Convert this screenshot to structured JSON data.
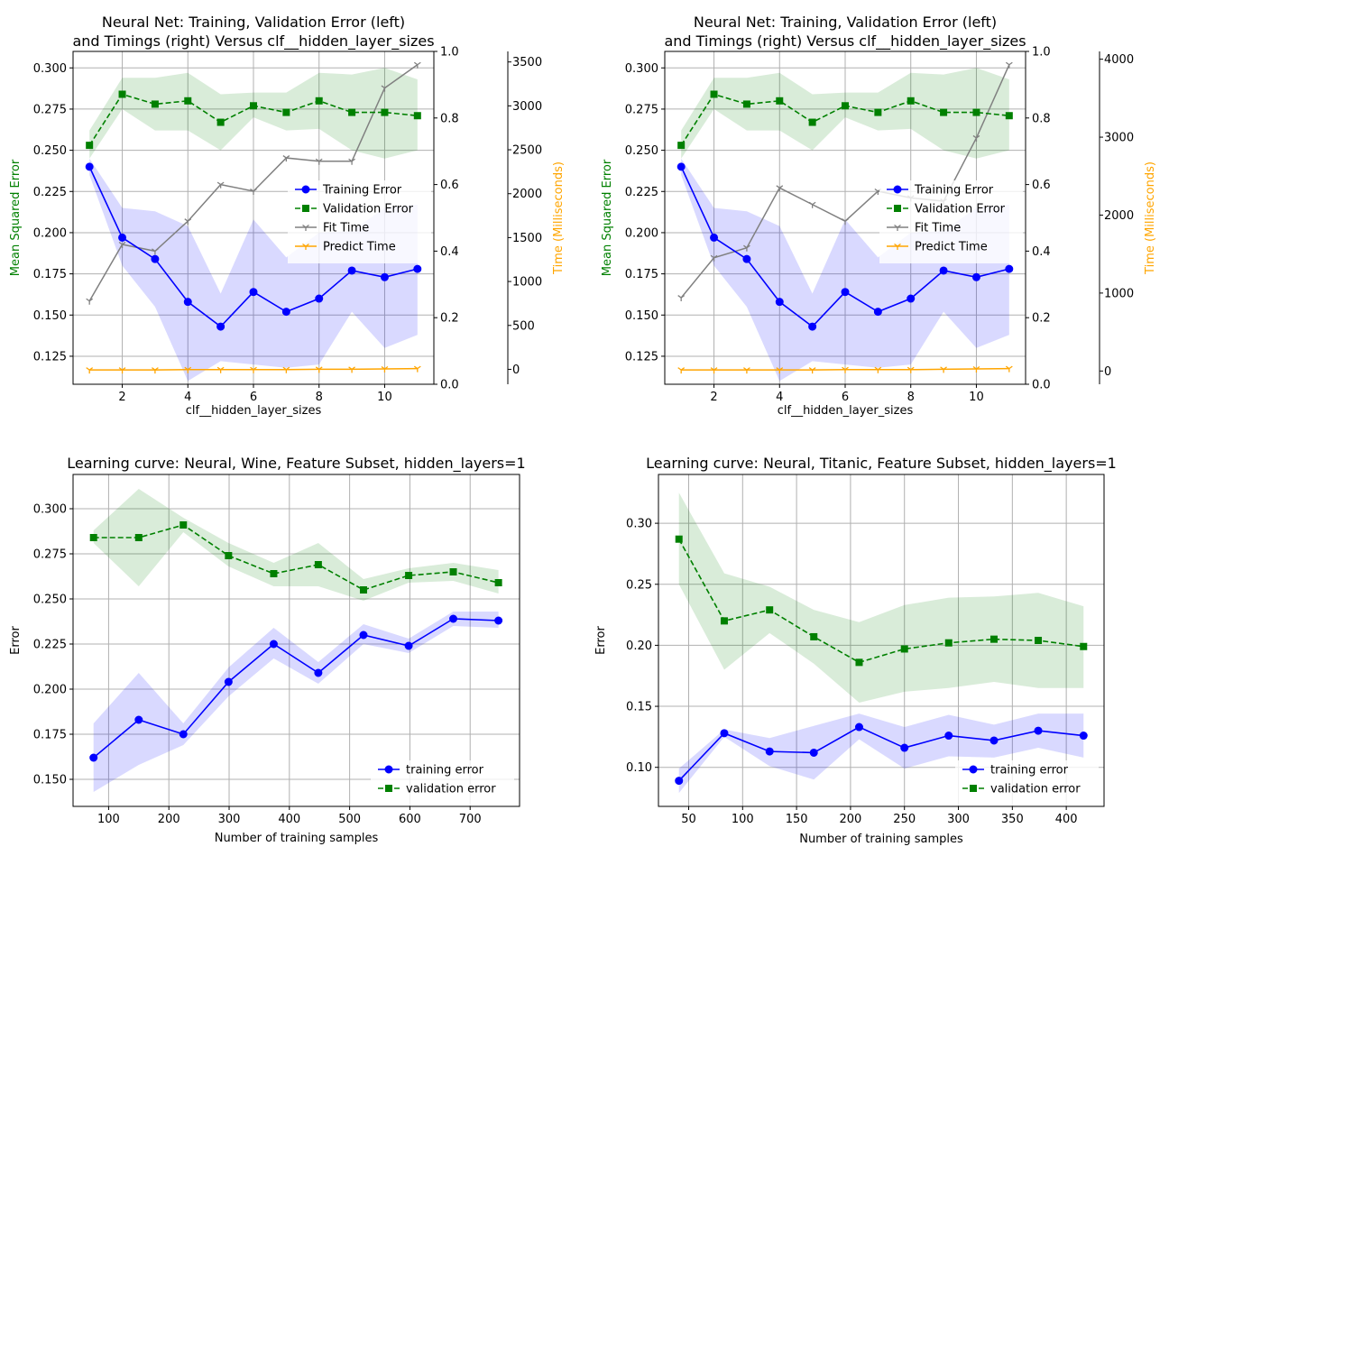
{
  "chart_data": [
    {
      "type": "line",
      "title": [
        "Neural Net: Training, Validation Error (left)",
        "and Timings (right) Versus clf__hidden_layer_sizes"
      ],
      "xlabel": "clf__hidden_layer_sizes",
      "ylabel": "Mean Squared Error",
      "ylabel2": "Time (Milliseconds)",
      "x": [
        1,
        2,
        3,
        4,
        5,
        6,
        7,
        8,
        9,
        10,
        11
      ],
      "xlim": [
        0.5,
        11.5
      ],
      "ylim": [
        0.108,
        0.31
      ],
      "y2lim": [
        0,
        1
      ],
      "y3lim": [
        -170,
        3620
      ],
      "xticks": [
        2,
        4,
        6,
        8,
        10
      ],
      "yticks": [
        0.125,
        0.15,
        0.175,
        0.2,
        0.225,
        0.25,
        0.275,
        0.3
      ],
      "y2ticks": [
        0.0,
        0.2,
        0.4,
        0.6,
        0.8,
        1.0
      ],
      "y3ticks": [
        0,
        500,
        1000,
        1500,
        2000,
        2500,
        3000,
        3500
      ],
      "legend": "center-right",
      "grid": true,
      "error_series": [
        {
          "name": "Training Error",
          "color": "#0000ff",
          "marker": "circle",
          "dash": "solid",
          "values": [
            0.24,
            0.197,
            0.184,
            0.158,
            0.143,
            0.164,
            0.152,
            0.16,
            0.177,
            0.173,
            0.178
          ],
          "band_lower": [
            0.235,
            0.18,
            0.155,
            0.11,
            0.122,
            0.12,
            0.118,
            0.12,
            0.152,
            0.13,
            0.138
          ],
          "band_upper": [
            0.245,
            0.215,
            0.213,
            0.204,
            0.163,
            0.208,
            0.185,
            0.2,
            0.201,
            0.215,
            0.217
          ],
          "band_color": "#0000ff"
        },
        {
          "name": "Validation Error",
          "color": "#008000",
          "marker": "square",
          "dash": "dashed",
          "values": [
            0.253,
            0.284,
            0.278,
            0.28,
            0.267,
            0.277,
            0.273,
            0.28,
            0.273,
            0.273,
            0.271
          ],
          "band_lower": [
            0.245,
            0.275,
            0.262,
            0.262,
            0.25,
            0.27,
            0.262,
            0.263,
            0.25,
            0.245,
            0.25
          ],
          "band_upper": [
            0.262,
            0.294,
            0.294,
            0.297,
            0.284,
            0.285,
            0.285,
            0.297,
            0.296,
            0.3,
            0.293
          ],
          "band_color": "#008000"
        }
      ],
      "time_series": [
        {
          "name": "Fit Time",
          "color": "#808080",
          "marker": "tri",
          "values": [
            0.25,
            0.42,
            0.4,
            0.49,
            0.6,
            0.58,
            0.68,
            0.67,
            0.67,
            0.89,
            0.96
          ]
        },
        {
          "name": "Predict Time",
          "color": "#ffa500",
          "marker": "tri",
          "values": [
            0.043,
            0.043,
            0.043,
            0.044,
            0.044,
            0.044,
            0.044,
            0.045,
            0.045,
            0.046,
            0.047
          ]
        }
      ]
    },
    {
      "type": "line",
      "title": [
        "Neural Net: Training, Validation Error (left)",
        "and Timings (right) Versus clf__hidden_layer_sizes"
      ],
      "xlabel": "clf__hidden_layer_sizes",
      "ylabel": "Mean Squared Error",
      "ylabel2": "Time (Milliseconds)",
      "x": [
        1,
        2,
        3,
        4,
        5,
        6,
        7,
        8,
        9,
        10,
        11
      ],
      "xlim": [
        0.5,
        11.5
      ],
      "ylim": [
        0.108,
        0.31
      ],
      "y2lim": [
        0,
        1
      ],
      "y3lim": [
        -170,
        4100
      ],
      "xticks": [
        2,
        4,
        6,
        8,
        10
      ],
      "yticks": [
        0.125,
        0.15,
        0.175,
        0.2,
        0.225,
        0.25,
        0.275,
        0.3
      ],
      "y2ticks": [
        0.0,
        0.2,
        0.4,
        0.6,
        0.8,
        1.0
      ],
      "y3ticks": [
        0,
        1000,
        2000,
        3000,
        4000
      ],
      "legend": "center-right",
      "grid": true,
      "error_series": [
        {
          "name": "Training Error",
          "color": "#0000ff",
          "marker": "circle",
          "dash": "solid",
          "values": [
            0.24,
            0.197,
            0.184,
            0.158,
            0.143,
            0.164,
            0.152,
            0.16,
            0.177,
            0.173,
            0.178
          ],
          "band_lower": [
            0.235,
            0.18,
            0.155,
            0.11,
            0.122,
            0.12,
            0.118,
            0.12,
            0.152,
            0.13,
            0.138
          ],
          "band_upper": [
            0.245,
            0.215,
            0.213,
            0.204,
            0.163,
            0.208,
            0.185,
            0.2,
            0.201,
            0.215,
            0.217
          ],
          "band_color": "#0000ff"
        },
        {
          "name": "Validation Error",
          "color": "#008000",
          "marker": "square",
          "dash": "dashed",
          "values": [
            0.253,
            0.284,
            0.278,
            0.28,
            0.267,
            0.277,
            0.273,
            0.28,
            0.273,
            0.273,
            0.271
          ],
          "band_lower": [
            0.245,
            0.275,
            0.262,
            0.262,
            0.25,
            0.27,
            0.262,
            0.263,
            0.25,
            0.245,
            0.25
          ],
          "band_upper": [
            0.262,
            0.294,
            0.294,
            0.297,
            0.284,
            0.285,
            0.285,
            0.297,
            0.296,
            0.3,
            0.293
          ],
          "band_color": "#008000"
        }
      ],
      "time_series": [
        {
          "name": "Fit Time",
          "color": "#808080",
          "marker": "tri",
          "values": [
            0.26,
            0.38,
            0.41,
            0.59,
            0.54,
            0.49,
            0.58,
            0.56,
            0.55,
            0.74,
            0.96
          ]
        },
        {
          "name": "Predict Time",
          "color": "#ffa500",
          "marker": "tri",
          "values": [
            0.043,
            0.043,
            0.043,
            0.043,
            0.043,
            0.044,
            0.044,
            0.044,
            0.045,
            0.046,
            0.047
          ]
        }
      ]
    },
    {
      "type": "line",
      "title": [
        "Learning curve: Neural, Wine, Feature Subset, hidden_layers=1"
      ],
      "xlabel": "Number of training samples",
      "ylabel": "Error",
      "x": [
        75,
        150,
        224,
        299,
        374,
        448,
        523,
        598,
        672,
        747
      ],
      "xlim": [
        41,
        782
      ],
      "ylim": [
        0.135,
        0.319
      ],
      "xticks": [
        100,
        200,
        300,
        400,
        500,
        600,
        700
      ],
      "yticks": [
        0.15,
        0.175,
        0.2,
        0.225,
        0.25,
        0.275,
        0.3
      ],
      "legend": "lower-right",
      "grid": true,
      "series": [
        {
          "name": "training error",
          "color": "#0000ff",
          "marker": "circle",
          "dash": "solid",
          "values": [
            0.162,
            0.183,
            0.175,
            0.204,
            0.225,
            0.209,
            0.23,
            0.224,
            0.239,
            0.238
          ],
          "band_lower": [
            0.143,
            0.158,
            0.169,
            0.196,
            0.217,
            0.203,
            0.225,
            0.22,
            0.235,
            0.234
          ],
          "band_upper": [
            0.181,
            0.209,
            0.181,
            0.212,
            0.234,
            0.215,
            0.236,
            0.228,
            0.243,
            0.243
          ]
        },
        {
          "name": "validation error",
          "color": "#008000",
          "marker": "square",
          "dash": "dashed",
          "values": [
            0.284,
            0.284,
            0.291,
            0.274,
            0.264,
            0.269,
            0.255,
            0.263,
            0.265,
            0.259
          ],
          "band_lower": [
            0.281,
            0.257,
            0.287,
            0.268,
            0.257,
            0.257,
            0.249,
            0.259,
            0.26,
            0.253
          ],
          "band_upper": [
            0.288,
            0.311,
            0.295,
            0.281,
            0.27,
            0.281,
            0.261,
            0.267,
            0.27,
            0.266
          ]
        }
      ]
    },
    {
      "type": "line",
      "title": [
        "Learning curve: Neural, Titanic, Feature Subset, hidden_layers=1"
      ],
      "xlabel": "Number of training samples",
      "ylabel": "Error",
      "x": [
        41,
        83,
        125,
        166,
        208,
        250,
        291,
        333,
        374,
        416
      ],
      "xlim": [
        22,
        435
      ],
      "ylim": [
        0.068,
        0.34
      ],
      "xticks": [
        50,
        100,
        150,
        200,
        250,
        300,
        350,
        400
      ],
      "yticks": [
        0.1,
        0.15,
        0.2,
        0.25,
        0.3
      ],
      "legend": "lower-right",
      "grid": true,
      "series": [
        {
          "name": "training error",
          "color": "#0000ff",
          "marker": "circle",
          "dash": "solid",
          "values": [
            0.089,
            0.128,
            0.113,
            0.112,
            0.133,
            0.116,
            0.126,
            0.122,
            0.13,
            0.126
          ],
          "band_lower": [
            0.079,
            0.125,
            0.101,
            0.09,
            0.123,
            0.099,
            0.109,
            0.108,
            0.116,
            0.108
          ],
          "band_upper": [
            0.099,
            0.131,
            0.124,
            0.134,
            0.144,
            0.133,
            0.143,
            0.135,
            0.144,
            0.144
          ]
        },
        {
          "name": "validation error",
          "color": "#008000",
          "marker": "square",
          "dash": "dashed",
          "values": [
            0.287,
            0.22,
            0.229,
            0.207,
            0.186,
            0.197,
            0.202,
            0.205,
            0.204,
            0.199
          ],
          "band_lower": [
            0.25,
            0.18,
            0.21,
            0.185,
            0.153,
            0.162,
            0.165,
            0.17,
            0.165,
            0.165
          ],
          "band_upper": [
            0.325,
            0.259,
            0.248,
            0.229,
            0.219,
            0.233,
            0.239,
            0.24,
            0.243,
            0.232
          ]
        }
      ]
    }
  ]
}
